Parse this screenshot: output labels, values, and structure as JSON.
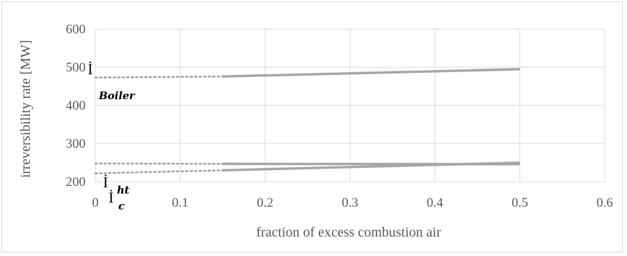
{
  "chart_data": {
    "type": "line",
    "title": "",
    "xlabel": "fraction of excess combustion air",
    "ylabel": "irreversibility rate  [MW]",
    "xlim": [
      0,
      0.6
    ],
    "ylim": [
      200,
      600
    ],
    "x_ticks": [
      "0",
      "0.1",
      "0.2",
      "0.3",
      "0.4",
      "0.5",
      "0.6"
    ],
    "y_ticks": [
      "200",
      "300",
      "400",
      "500",
      "600"
    ],
    "grid": true,
    "legend": "none",
    "series": [
      {
        "name": "İ Boiler",
        "label_main": "İ",
        "label_sub": "Boiler",
        "dotted": {
          "x": [
            0.0,
            0.15
          ],
          "y": [
            473,
            476
          ]
        },
        "solid": {
          "x": [
            0.15,
            0.5
          ],
          "y": [
            476,
            495
          ]
        },
        "color": "#a6a6a6"
      },
      {
        "name": "İ ht",
        "label_main": "İ",
        "label_sub": "ht",
        "dotted": {
          "x": [
            0.0,
            0.15
          ],
          "y": [
            248,
            247
          ]
        },
        "solid": {
          "x": [
            0.15,
            0.5
          ],
          "y": [
            247,
            246
          ]
        },
        "color": "#a6a6a6"
      },
      {
        "name": "İ c",
        "label_main": "İ",
        "label_sub": "c",
        "dotted": {
          "x": [
            0.0,
            0.15
          ],
          "y": [
            222,
            230
          ]
        },
        "solid": {
          "x": [
            0.15,
            0.5
          ],
          "y": [
            230,
            250
          ]
        },
        "color": "#a6a6a6"
      }
    ]
  },
  "colors": {
    "gridline": "#d9d9d9",
    "series": "#a6a6a6",
    "dotted": "#9e9e9e"
  }
}
